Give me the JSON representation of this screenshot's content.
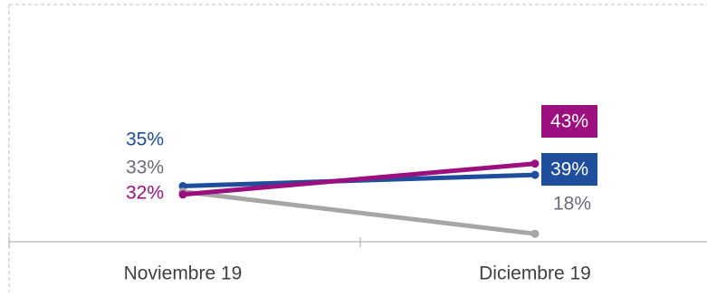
{
  "chart_data": {
    "type": "line",
    "title": "",
    "xlabel": "",
    "ylabel": "",
    "categories": [
      "Noviembre 19",
      "Diciembre 19"
    ],
    "ylim": [
      0,
      100
    ],
    "grid": false,
    "legend": "none",
    "series": [
      {
        "values": [
          35,
          39
        ],
        "labels": [
          "35%",
          "39%"
        ],
        "color": "#1F4E9C",
        "end_label_style": "boxed"
      },
      {
        "values": [
          33,
          18
        ],
        "labels": [
          "33%",
          "18%"
        ],
        "color": "#A6A6A6",
        "label_color": "#6B6B7B",
        "end_label_style": "plain"
      },
      {
        "values": [
          32,
          43
        ],
        "labels": [
          "32%",
          "43%"
        ],
        "color": "#9B0F7E",
        "end_label_style": "boxed"
      }
    ]
  }
}
